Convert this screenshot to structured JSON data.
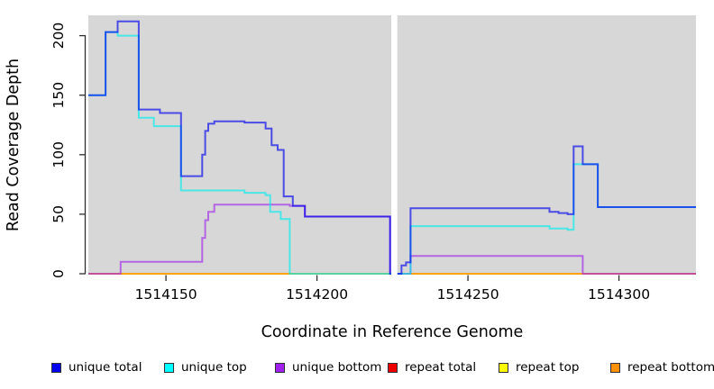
{
  "chart_data": {
    "type": "line",
    "subtype": "step-coverage",
    "title": "",
    "xlabel": "Coordinate in Reference Genome",
    "ylabel": "Read Coverage Depth",
    "xlim": [
      1514124.3,
      1514325.5
    ],
    "ylim": [
      0,
      216
    ],
    "x_ticks": [
      {
        "value": 1514150,
        "label": "1514150"
      },
      {
        "value": 1514200,
        "label": "1514200"
      },
      {
        "value": 1514250,
        "label": "1514250"
      },
      {
        "value": 1514300,
        "label": "1514300"
      }
    ],
    "y_ticks": [
      {
        "value": 0,
        "label": "0"
      },
      {
        "value": 50,
        "label": "50"
      },
      {
        "value": 100,
        "label": "100"
      },
      {
        "value": 150,
        "label": "150"
      },
      {
        "value": 200,
        "label": "200"
      }
    ],
    "panel_bg": "#D7D7D7",
    "grid": false,
    "no_data_gap": {
      "x0": 1514224.6,
      "x1": 1514226.6,
      "color": "#FFFFFF"
    },
    "line_alpha": 0.65,
    "line_width": 2,
    "series": [
      {
        "name": "repeat total",
        "color": "#DC0000",
        "segments": [
          {
            "x": [
              1514124.3,
              1514224.6
            ],
            "v": [
              0
            ]
          },
          {
            "x": [
              1514226.6,
              1514325.5
            ],
            "v": [
              0
            ]
          }
        ]
      },
      {
        "name": "repeat top",
        "color": "#FFFF00",
        "segments": [
          {
            "x": [
              1514124.3,
              1514224.6
            ],
            "v": [
              0
            ]
          },
          {
            "x": [
              1514226.6,
              1514325.5
            ],
            "v": [
              0
            ]
          }
        ]
      },
      {
        "name": "repeat bottom",
        "color": "#FF9100",
        "segments": [
          {
            "x": [
              1514124.3,
              1514224.6
            ],
            "v": [
              0
            ]
          },
          {
            "x": [
              1514226.6,
              1514325.5
            ],
            "v": [
              0
            ]
          }
        ]
      },
      {
        "name": "unique bottom",
        "color": "#A028E8",
        "segments": [
          {
            "x": [
              1514124.3,
              1514135,
              1514162,
              1514163,
              1514164,
              1514166,
              1514191,
              1514196,
              1514224.2,
              1514224.6
            ],
            "v": [
              0,
              10,
              30,
              45,
              52,
              58,
              57,
              48,
              0
            ]
          },
          {
            "x": [
              1514226.6,
              1514231,
              1514288,
              1514325.5
            ],
            "v": [
              0,
              15,
              0
            ]
          }
        ]
      },
      {
        "name": "unique top",
        "color": "#00EEEE",
        "segments": [
          {
            "x": [
              1514124.3,
              1514130,
              1514134,
              1514141,
              1514146,
              1514155,
              1514176,
              1514183,
              1514184.5,
              1514188,
              1514191,
              1514224.6
            ],
            "v": [
              150,
              203,
              200,
              131,
              124,
              70,
              68,
              66,
              52,
              46,
              0
            ]
          },
          {
            "x": [
              1514226.6,
              1514231,
              1514277,
              1514283,
              1514285,
              1514293,
              1514325.5
            ],
            "v": [
              0,
              40,
              38,
              37,
              92,
              56
            ]
          }
        ]
      },
      {
        "name": "unique total",
        "color": "#0000EE",
        "segments": [
          {
            "x": [
              1514124.3,
              1514130,
              1514134,
              1514141,
              1514148,
              1514155,
              1514162,
              1514163,
              1514164,
              1514166,
              1514176,
              1514183,
              1514185,
              1514187,
              1514189,
              1514192,
              1514196,
              1514224.2,
              1514224.6
            ],
            "v": [
              150,
              203,
              212,
              138,
              135,
              82,
              100,
              120,
              126,
              128,
              127,
              122,
              108,
              104,
              65,
              57,
              48,
              0
            ]
          },
          {
            "x": [
              1514226.6,
              1514228,
              1514229.5,
              1514231,
              1514277,
              1514280,
              1514283,
              1514285,
              1514288,
              1514293,
              1514325.5
            ],
            "v": [
              0,
              7,
              9.5,
              55,
              52,
              51,
              50,
              107,
              92,
              56
            ]
          }
        ]
      }
    ],
    "legend": [
      {
        "label": "unique total",
        "color": "#0000EE"
      },
      {
        "label": "unique top",
        "color": "#00FFFF"
      },
      {
        "label": "unique bottom",
        "color": "#A020F0"
      },
      {
        "label": "repeat total",
        "color": "#EE0000"
      },
      {
        "label": "repeat top",
        "color": "#FFFF00"
      },
      {
        "label": "repeat bottom",
        "color": "#FF9100"
      }
    ],
    "legend_position": "bottom"
  }
}
